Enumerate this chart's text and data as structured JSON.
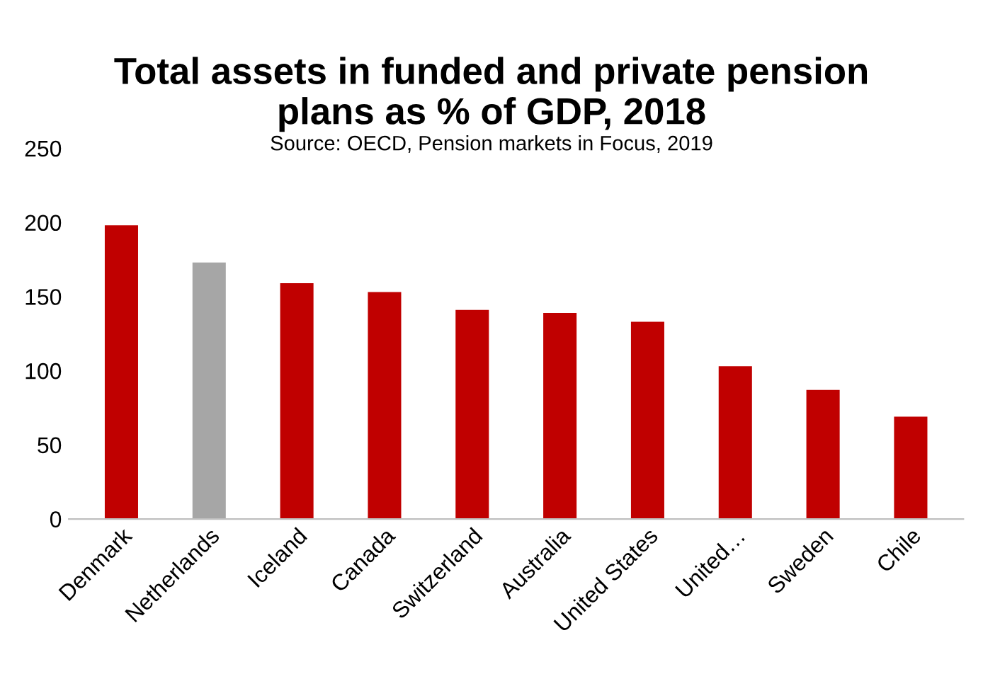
{
  "chart_data": {
    "type": "bar",
    "title": "Total assets in funded and private pension\nplans as % of GDP, 2018",
    "subtitle": "Source: OECD, Pension markets in Focus, 2019",
    "categories": [
      "Denmark",
      "Netherlands",
      "Iceland",
      "Canada",
      "Switzerland",
      "Australia",
      "United States",
      "United…",
      "Sweden",
      "Chile"
    ],
    "values": [
      198,
      173,
      159,
      153,
      141,
      139,
      133,
      103,
      87,
      69
    ],
    "colors": [
      "#c00000",
      "#a6a6a6",
      "#c00000",
      "#c00000",
      "#c00000",
      "#c00000",
      "#c00000",
      "#c00000",
      "#c00000",
      "#c00000"
    ],
    "ylim": [
      0,
      250
    ],
    "yticks": [
      0,
      50,
      100,
      150,
      200,
      250
    ],
    "grid": false,
    "legend": false
  }
}
